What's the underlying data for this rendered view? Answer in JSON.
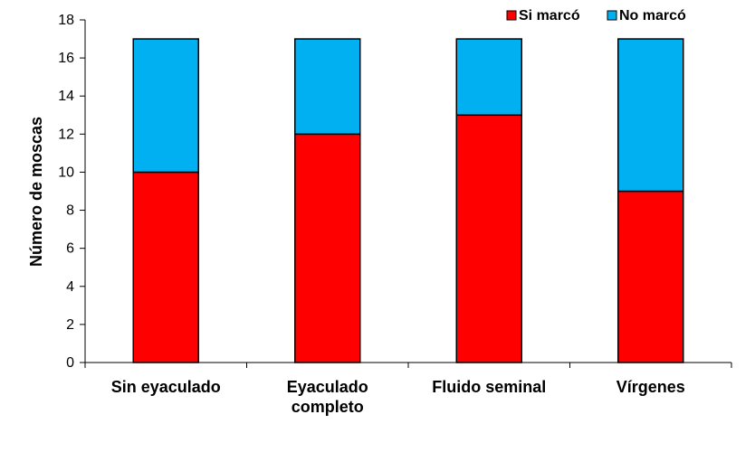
{
  "chart_data": {
    "type": "bar",
    "stacked": true,
    "categories": [
      [
        "Sin eyaculado"
      ],
      [
        "Eyaculado",
        "completo"
      ],
      [
        "Fluido seminal"
      ],
      [
        "Vírgenes"
      ]
    ],
    "series": [
      {
        "name": "Si marcó",
        "color": "#ff0000",
        "values": [
          10,
          12,
          13,
          9
        ]
      },
      {
        "name": "No marcó",
        "color": "#00b0f0",
        "values": [
          7,
          5,
          4,
          8
        ]
      }
    ],
    "xlabel": "",
    "ylabel": "Número de moscas",
    "ylim": [
      0,
      18
    ],
    "yticks": [
      0,
      2,
      4,
      6,
      8,
      10,
      12,
      14,
      16,
      18
    ],
    "grid": false,
    "legend_position": "top-right"
  }
}
